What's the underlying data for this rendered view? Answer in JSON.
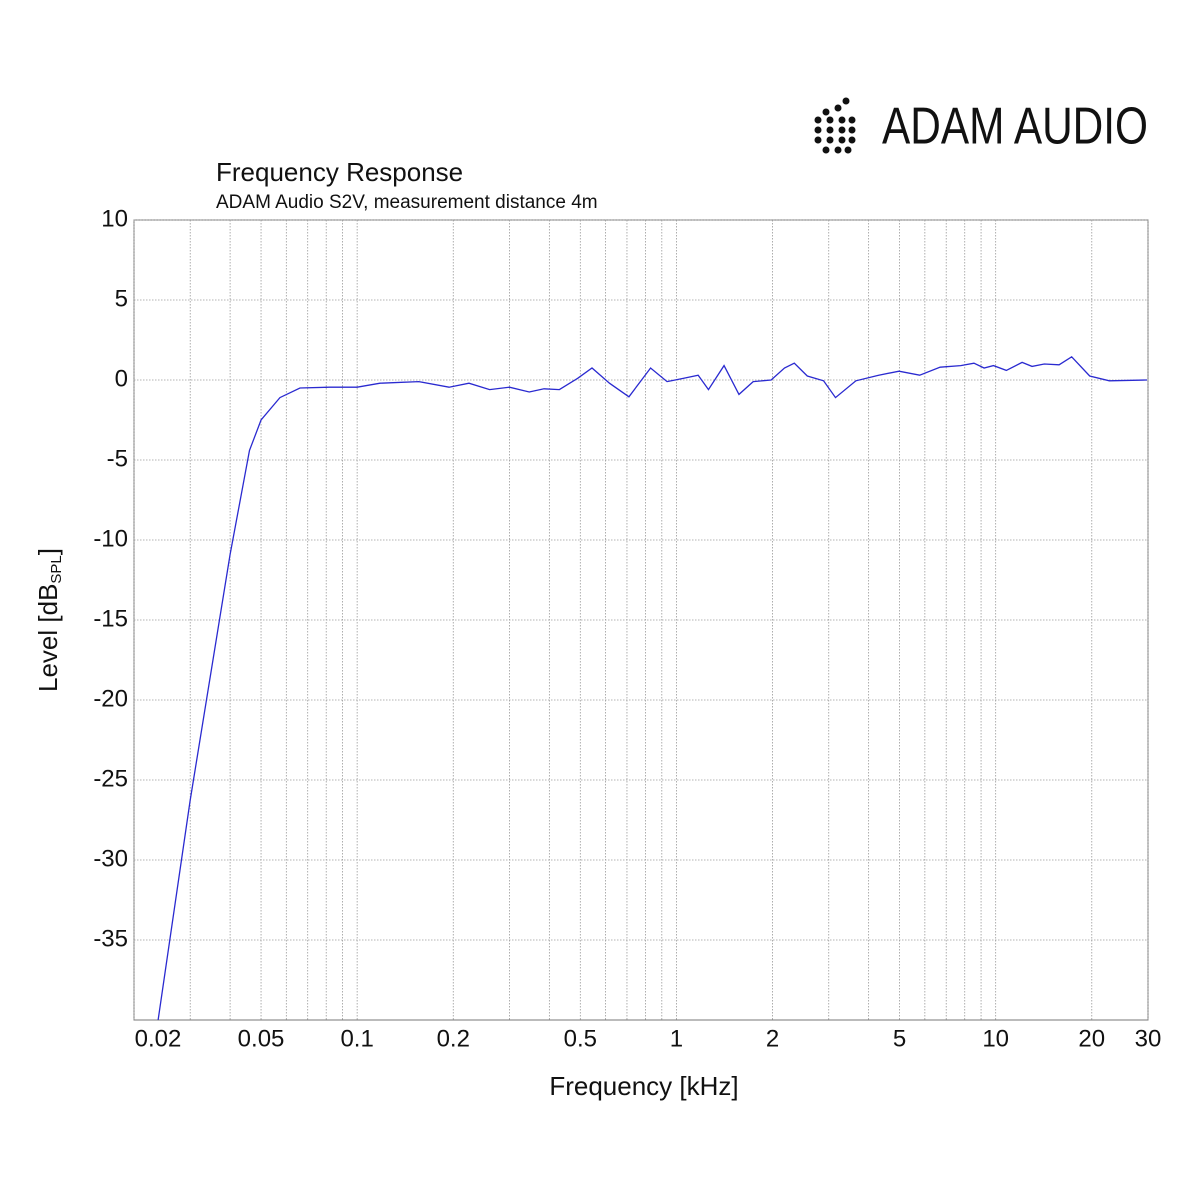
{
  "logo": "ADAM AUDIO",
  "chart_data": {
    "type": "line",
    "title": "Frequency Response",
    "subtitle": "ADAM Audio S2V, measurement distance 4m",
    "xlabel": "Frequency [kHz]",
    "ylabel": "Level [dB",
    "ylabel_sub": "SPL",
    "ylabel_end": "]",
    "x": [
      0.0238,
      0.03,
      0.04,
      0.046,
      0.05,
      0.0573,
      0.0662,
      0.082,
      0.1,
      0.118,
      0.156,
      0.194,
      0.224,
      0.26,
      0.3,
      0.346,
      0.385,
      0.43,
      0.49,
      0.544,
      0.617,
      0.71,
      0.83,
      0.935,
      1.05,
      1.17,
      1.26,
      1.41,
      1.57,
      1.74,
      1.98,
      2.18,
      2.34,
      2.57,
      2.89,
      3.15,
      3.65,
      4.3,
      4.98,
      5.78,
      6.7,
      7.77,
      8.55,
      9.2,
      9.84,
      10.8,
      12.1,
      13.0,
      14.2,
      15.8,
      17.3,
      19.7,
      22.7,
      29.8
    ],
    "series": [
      {
        "color": "#2a2ad0",
        "values": [
          -40,
          -26.25,
          -10.9,
          -4.4,
          -2.5,
          -1.1,
          -0.5,
          -0.45,
          -0.45,
          -0.2,
          -0.1,
          -0.45,
          -0.2,
          -0.6,
          -0.45,
          -0.75,
          -0.55,
          -0.6,
          0.1,
          0.75,
          -0.2,
          -1.05,
          0.75,
          -0.1,
          0.1,
          0.3,
          -0.6,
          0.9,
          -0.9,
          -0.1,
          0,
          0.75,
          1.05,
          0.25,
          -0.05,
          -1.1,
          -0.05,
          0.3,
          0.55,
          0.3,
          0.8,
          0.9,
          1.05,
          0.75,
          0.9,
          0.6,
          1.1,
          0.85,
          1.0,
          0.95,
          1.45,
          0.25,
          -0.05,
          0
        ]
      }
    ],
    "xscale": "log",
    "xlim": [
      0.02,
      30
    ],
    "ylim": [
      -40,
      10
    ],
    "xticks": [
      0.02,
      0.05,
      0.1,
      0.2,
      0.5,
      1,
      2,
      5,
      10,
      20,
      30
    ],
    "xminor": [
      0.03,
      0.04,
      0.06,
      0.07,
      0.08,
      0.09,
      0.3,
      0.4,
      0.6,
      0.7,
      0.8,
      0.9,
      3,
      4,
      6,
      7,
      8,
      9
    ],
    "yticks": [
      10,
      5,
      0,
      -5,
      -10,
      -15,
      -20,
      -25,
      -30,
      -35
    ],
    "grid": true
  }
}
